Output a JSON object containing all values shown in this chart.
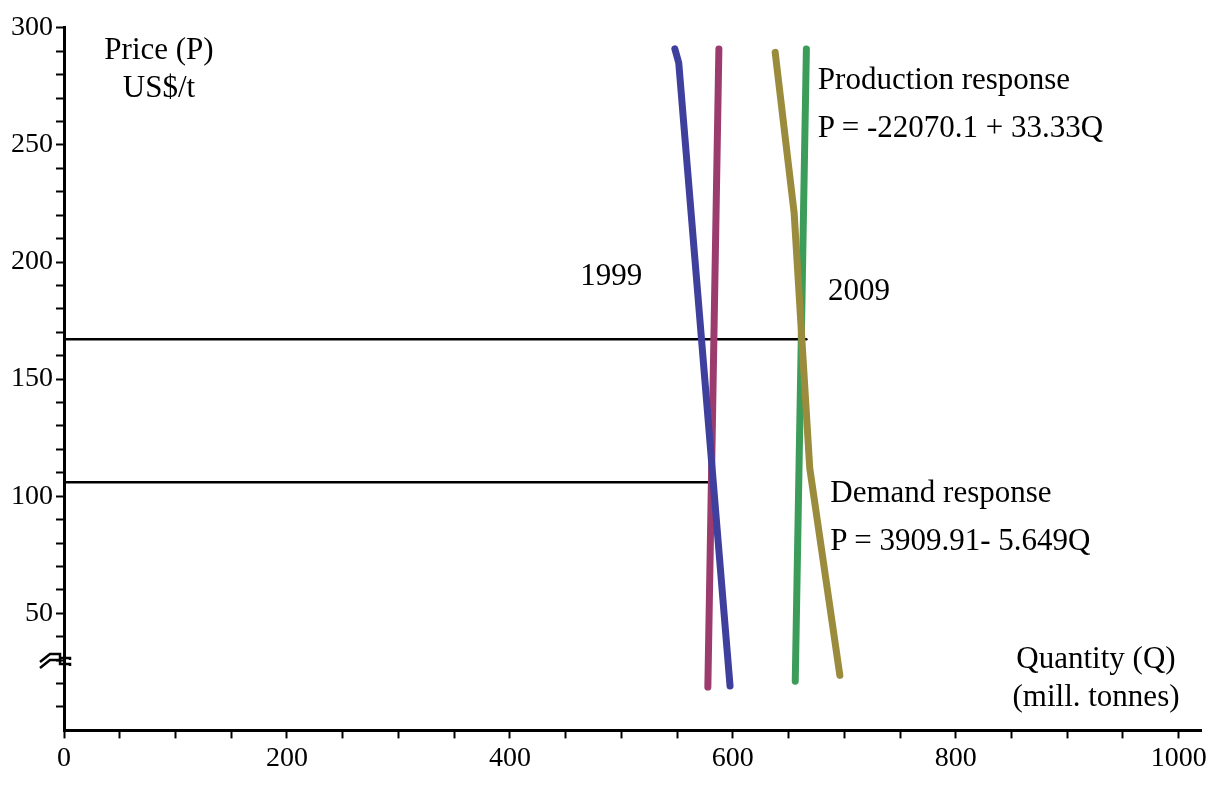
{
  "chart_data": {
    "type": "line",
    "xlabel": "Quantity (Q)\n(mill. tonnes)",
    "ylabel": "Price (P)\nUS$/t",
    "xlim": [
      0,
      1020
    ],
    "ylim": [
      0,
      300
    ],
    "xticks": [
      0,
      {
        "value": 50,
        "label": null
      },
      200,
      {
        "value": 100,
        "label": null
      },
      {
        "value": 150,
        "label": null
      },
      {
        "value": 250,
        "label": null
      },
      {
        "value": 300,
        "label": null
      },
      {
        "value": 350,
        "label": null
      },
      400,
      {
        "value": 450,
        "label": null
      },
      {
        "value": 500,
        "label": null
      },
      {
        "value": 550,
        "label": null
      },
      600,
      {
        "value": 650,
        "label": null
      },
      {
        "value": 700,
        "label": null
      },
      {
        "value": 750,
        "label": null
      },
      800,
      {
        "value": 850,
        "label": null
      },
      {
        "value": 900,
        "label": null
      },
      {
        "value": 950,
        "label": null
      },
      1000
    ],
    "yticks": [
      {
        "value": 10,
        "label": null
      },
      {
        "value": 20,
        "label": null
      },
      {
        "value": 30,
        "label": null
      },
      {
        "value": 40,
        "label": null
      },
      50,
      {
        "value": 60,
        "label": null
      },
      {
        "value": 70,
        "label": null
      },
      {
        "value": 80,
        "label": null
      },
      {
        "value": 90,
        "label": null
      },
      100,
      {
        "value": 110,
        "label": null
      },
      {
        "value": 120,
        "label": null
      },
      {
        "value": 130,
        "label": null
      },
      {
        "value": 140,
        "label": null
      },
      150,
      {
        "value": 160,
        "label": null
      },
      {
        "value": 170,
        "label": null
      },
      {
        "value": 180,
        "label": null
      },
      {
        "value": 190,
        "label": null
      },
      200,
      {
        "value": 210,
        "label": null
      },
      {
        "value": 220,
        "label": null
      },
      {
        "value": 230,
        "label": null
      },
      {
        "value": 240,
        "label": null
      },
      250,
      {
        "value": 260,
        "label": null
      },
      {
        "value": 270,
        "label": null
      },
      {
        "value": 280,
        "label": null
      },
      {
        "value": 290,
        "label": null
      },
      300
    ],
    "grid": false,
    "legend": false,
    "marker": "none",
    "line_style": "solid",
    "series": [
      {
        "color": "#3f3f9d",
        "x": [
          548,
          551.5,
          597.5
        ],
        "values": [
          291,
          285,
          19
        ]
      },
      {
        "color": "#9c3c6e",
        "x": [
          587.5,
          577.6
        ],
        "values": [
          291,
          18.5
        ]
      },
      {
        "color": "#9a8c3c",
        "x": [
          638,
          655,
          669,
          696
        ],
        "values": [
          289.5,
          221,
          112,
          23.5
        ]
      },
      {
        "color": "#3c9d5a",
        "x": [
          666,
          656
        ],
        "values": [
          291,
          21
        ]
      },
      {
        "color": "#000000",
        "x": [
          0,
          666
        ],
        "values": [
          167,
          167
        ]
      },
      {
        "color": "#000000",
        "x": [
          0,
          580
        ],
        "values": [
          106,
          106
        ]
      }
    ],
    "annotations": [
      "1999",
      "2009",
      "Production response\nP = -22070.1 + 33.33Q",
      "Demand response\nP = 3909.91- 5.649Q"
    ]
  }
}
